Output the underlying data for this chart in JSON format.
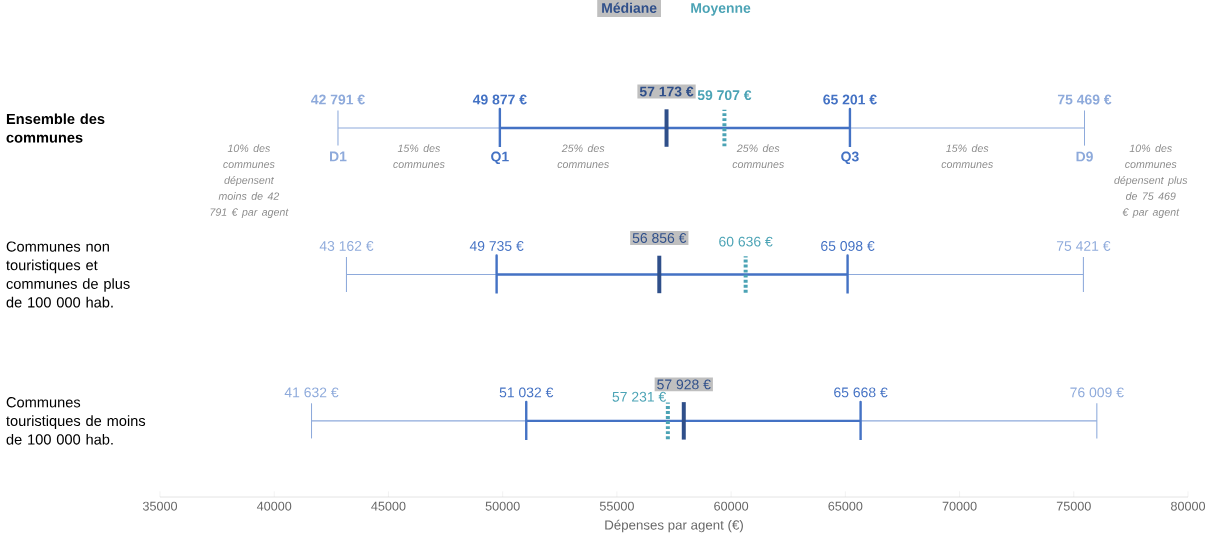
{
  "chart_data": {
    "type": "box",
    "orientation": "horizontal",
    "xlabel": "Dépenses par agent (€)",
    "categories": [
      "Ensemble des communes",
      "Communes non touristiques et communes de plus de 100 000 hab.",
      "Communes touristiques de moins de 100 000 hab."
    ],
    "boxes": [
      {
        "low": 42791,
        "q1": 49877,
        "median": 57173,
        "q3": 65201,
        "high": 75469,
        "mean": 59707
      },
      {
        "low": 43162,
        "q1": 49735,
        "median": 56856,
        "q3": 65098,
        "high": 75421,
        "mean": 60636
      },
      {
        "low": 41632,
        "q1": 51032,
        "median": 57928,
        "q3": 65668,
        "high": 76009,
        "mean": 57231
      }
    ],
    "xlim": [
      35000,
      80000
    ],
    "xticks": [
      35000,
      40000,
      45000,
      50000,
      55000,
      60000,
      65000,
      70000,
      75000,
      80000
    ],
    "annotations": [
      "Médiane",
      "Moyenne",
      "10% des communes dépensent moins de 42 791 € par agent",
      "15% des communes",
      "25% des communes",
      "25% des communes",
      "15% des communes",
      "10% des communes dépensent plus de 75 469 € par agent",
      {
        "text": "42 791 €",
        "x": 42791,
        "y": "Ensemble des communes"
      },
      {
        "text": "D1",
        "x": 42791,
        "y": "Ensemble des communes"
      },
      {
        "text": "49 877 €",
        "x": 49877,
        "y": "Ensemble des communes"
      },
      {
        "text": "Q1",
        "x": 49877,
        "y": "Ensemble des communes"
      },
      {
        "text": "57 173 €",
        "x": 57173,
        "y": "Ensemble des communes"
      },
      {
        "text": "59 707 €",
        "x": 59707,
        "y": "Ensemble des communes"
      },
      {
        "text": "65 201 €",
        "x": 65201,
        "y": "Ensemble des communes"
      },
      {
        "text": "Q3",
        "x": 65201,
        "y": "Ensemble des communes"
      },
      {
        "text": "75 469 €",
        "x": 75469,
        "y": "Ensemble des communes"
      },
      {
        "text": "D9",
        "x": 75469,
        "y": "Ensemble des communes"
      },
      {
        "text": "43 162 €",
        "x": 43162,
        "y": "Communes non touristiques et communes de plus de 100 000 hab."
      },
      {
        "text": "49 735 €",
        "x": 49735,
        "y": "Communes non touristiques et communes de plus de 100 000 hab."
      },
      {
        "text": "56 856 €",
        "x": 56856,
        "y": "Communes non touristiques et communes de plus de 100 000 hab."
      },
      {
        "text": "60 636 €",
        "x": 60636,
        "y": "Communes non touristiques et communes de plus de 100 000 hab."
      },
      {
        "text": "65 098 €",
        "x": 65098,
        "y": "Communes non touristiques et communes de plus de 100 000 hab."
      },
      {
        "text": "75 421 €",
        "x": 75421,
        "y": "Communes non touristiques et communes de plus de 100 000 hab."
      },
      {
        "text": "41 632 €",
        "x": 41632,
        "y": "Communes touristiques de moins de 100 000 hab."
      },
      {
        "text": "51 032 €",
        "x": 51032,
        "y": "Communes touristiques de moins de 100 000 hab."
      },
      {
        "text": "57 928 €",
        "x": 57928,
        "y": "Communes touristiques de moins de 100 000 hab."
      },
      {
        "text": "57 231 €",
        "x": 57231,
        "y": "Communes touristiques de moins de 100 000 hab."
      },
      {
        "text": "65 668 €",
        "x": 65668,
        "y": "Communes touristiques de moins de 100 000 hab."
      },
      {
        "text": "76 009 €",
        "x": 76009,
        "y": "Communes touristiques de moins de 100 000 hab."
      }
    ]
  }
}
